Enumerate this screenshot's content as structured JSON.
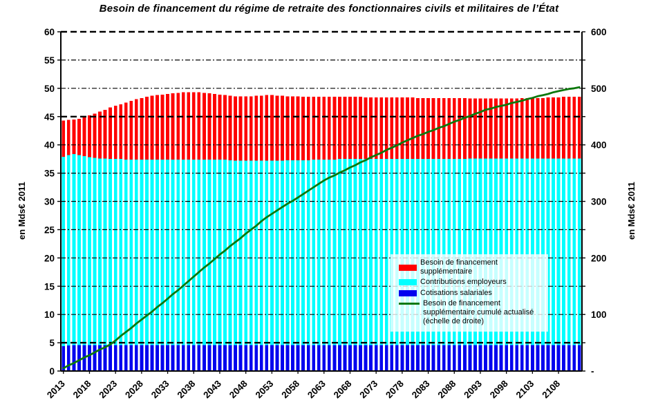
{
  "page": {
    "background": "#ffffff"
  },
  "colors": {
    "grid": "#000000",
    "axis": "#000000",
    "text": "#000000",
    "legend_bg": "rgba(255,255,255,0.78)"
  },
  "chart_data": {
    "type": "combo-stacked-bar-line",
    "title": "Besoin de financement du régime de retraite des fonctionnaires civils et militaires de l’État",
    "grid": true,
    "legend_position": "center-right",
    "axes": {
      "left": {
        "title": "en Mds€ 2011",
        "min": 0,
        "max": 60,
        "step": 5,
        "tick_labels": [
          "0",
          "5",
          "10",
          "15",
          "20",
          "25",
          "30",
          "35",
          "40",
          "45",
          "50",
          "55",
          "60"
        ],
        "bold_gridlines": [
          60,
          45,
          5
        ]
      },
      "right": {
        "title": "en Mds€ 2011",
        "min": 0,
        "max": 600,
        "label_step": 100,
        "tick_step": 50,
        "zero_label": "-",
        "tick_labels": [
          "-",
          "100",
          "200",
          "300",
          "400",
          "500",
          "600"
        ]
      }
    },
    "x_axis": {
      "year_start": 2013,
      "year_end": 2112,
      "bar_count": 100,
      "tick_years": [
        2013,
        2018,
        2023,
        2028,
        2033,
        2038,
        2043,
        2048,
        2053,
        2058,
        2063,
        2068,
        2073,
        2078,
        2083,
        2088,
        2093,
        2098,
        2103,
        2108
      ]
    },
    "series": [
      {
        "name": "Besoin de financement supplémentaire",
        "type": "bar",
        "stack_order": 3,
        "color": "#ff0000",
        "values": [
          6.4,
          6.2,
          6.1,
          6.4,
          6.9,
          7.4,
          7.8,
          8.3,
          8.6,
          9.1,
          9.4,
          9.7,
          10.1,
          10.4,
          10.7,
          10.9,
          11.1,
          11.3,
          11.4,
          11.5,
          11.6,
          11.7,
          11.8,
          11.9,
          11.9,
          11.9,
          11.9,
          11.8,
          11.7,
          11.6,
          11.5,
          11.4,
          11.4,
          11.4,
          11.4,
          11.4,
          11.4,
          11.5,
          11.5,
          11.6,
          11.6,
          11.5,
          11.5,
          11.3,
          11.3,
          11.3,
          11.2,
          11.2,
          11.1,
          11.1,
          11.1,
          11.1,
          11.1,
          11.0,
          11.0,
          11.0,
          11.0,
          11.0,
          10.9,
          10.9,
          10.9,
          10.9,
          10.9,
          10.9,
          10.9,
          10.9,
          10.9,
          10.9,
          10.8,
          10.8,
          10.8,
          10.8,
          10.8,
          10.8,
          10.8,
          10.8,
          10.8,
          10.8,
          10.6,
          10.6,
          10.6,
          10.6,
          10.6,
          10.6,
          10.6,
          10.6,
          10.6,
          10.6,
          10.7,
          10.7,
          10.7,
          10.7,
          10.7,
          10.8,
          10.8,
          10.8,
          10.9,
          10.9,
          10.9,
          10.9
        ]
      },
      {
        "name": "Contributions employeurs",
        "type": "bar",
        "stack_order": 2,
        "color": "#00ffff",
        "values": [
          33.5,
          33.7,
          33.8,
          33.6,
          33.4,
          33.2,
          33.1,
          33.0,
          33.0,
          32.9,
          32.9,
          32.9,
          32.8,
          32.8,
          32.8,
          32.8,
          32.8,
          32.8,
          32.8,
          32.8,
          32.8,
          32.8,
          32.8,
          32.8,
          32.8,
          32.8,
          32.8,
          32.8,
          32.8,
          32.8,
          32.8,
          32.8,
          32.7,
          32.6,
          32.6,
          32.6,
          32.6,
          32.6,
          32.6,
          32.6,
          32.6,
          32.6,
          32.6,
          32.7,
          32.7,
          32.7,
          32.7,
          32.7,
          32.8,
          32.8,
          32.8,
          32.8,
          32.8,
          32.9,
          32.9,
          32.9,
          32.9,
          32.9,
          32.9,
          32.9,
          32.9,
          32.9,
          32.9,
          32.9,
          32.9,
          32.9,
          32.9,
          32.9,
          32.9,
          32.9,
          32.9,
          32.9,
          32.9,
          32.9,
          32.9,
          32.9,
          32.9,
          32.9,
          33.0,
          33.0,
          33.0,
          33.0,
          33.0,
          33.0,
          33.0,
          33.0,
          33.0,
          33.0,
          33.0,
          33.0,
          33.0,
          33.0,
          33.0,
          33.0,
          33.0,
          33.0,
          33.0,
          33.0,
          33.0,
          33.0
        ]
      },
      {
        "name": "Cotisations salariales",
        "type": "bar",
        "stack_order": 1,
        "color": "#0202ee",
        "values": [
          4.4,
          4.5,
          4.6,
          4.6,
          4.6,
          4.6,
          4.6,
          4.6,
          4.6,
          4.6,
          4.6,
          4.6,
          4.6,
          4.6,
          4.6,
          4.6,
          4.6,
          4.6,
          4.6,
          4.6,
          4.6,
          4.6,
          4.6,
          4.6,
          4.6,
          4.6,
          4.6,
          4.6,
          4.6,
          4.6,
          4.6,
          4.6,
          4.6,
          4.6,
          4.6,
          4.6,
          4.6,
          4.6,
          4.6,
          4.6,
          4.6,
          4.6,
          4.6,
          4.6,
          4.6,
          4.6,
          4.6,
          4.6,
          4.6,
          4.6,
          4.6,
          4.6,
          4.6,
          4.6,
          4.6,
          4.6,
          4.6,
          4.6,
          4.6,
          4.6,
          4.6,
          4.6,
          4.6,
          4.6,
          4.6,
          4.6,
          4.6,
          4.6,
          4.6,
          4.6,
          4.6,
          4.6,
          4.6,
          4.6,
          4.6,
          4.6,
          4.6,
          4.6,
          4.6,
          4.6,
          4.6,
          4.6,
          4.6,
          4.6,
          4.6,
          4.6,
          4.6,
          4.6,
          4.6,
          4.6,
          4.6,
          4.6,
          4.6,
          4.6,
          4.6,
          4.6,
          4.6,
          4.6,
          4.6,
          4.6
        ]
      },
      {
        "name": "Besoin de financement supplémentaire cumulé actualisé (échelle de droite)",
        "type": "line",
        "axis": "right",
        "color": "#0c780c",
        "values": [
          5,
          10,
          14,
          19,
          24,
          28,
          33,
          38,
          42,
          47,
          54,
          62,
          69,
          76,
          84,
          91,
          98,
          105,
          113,
          120,
          128,
          136,
          143,
          151,
          159,
          167,
          175,
          183,
          190,
          198,
          206,
          213,
          221,
          228,
          235,
          243,
          250,
          257,
          265,
          272,
          278,
          284,
          290,
          296,
          301,
          307,
          313,
          319,
          325,
          331,
          337,
          342,
          346,
          351,
          355,
          360,
          364,
          369,
          373,
          378,
          382,
          386,
          391,
          395,
          399,
          404,
          408,
          412,
          416,
          419,
          423,
          426,
          430,
          433,
          437,
          441,
          444,
          448,
          451,
          455,
          458,
          462,
          464,
          467,
          469,
          471,
          474,
          476,
          478,
          481,
          483,
          486,
          488,
          490,
          493,
          495,
          497,
          499,
          500,
          502
        ]
      }
    ]
  }
}
